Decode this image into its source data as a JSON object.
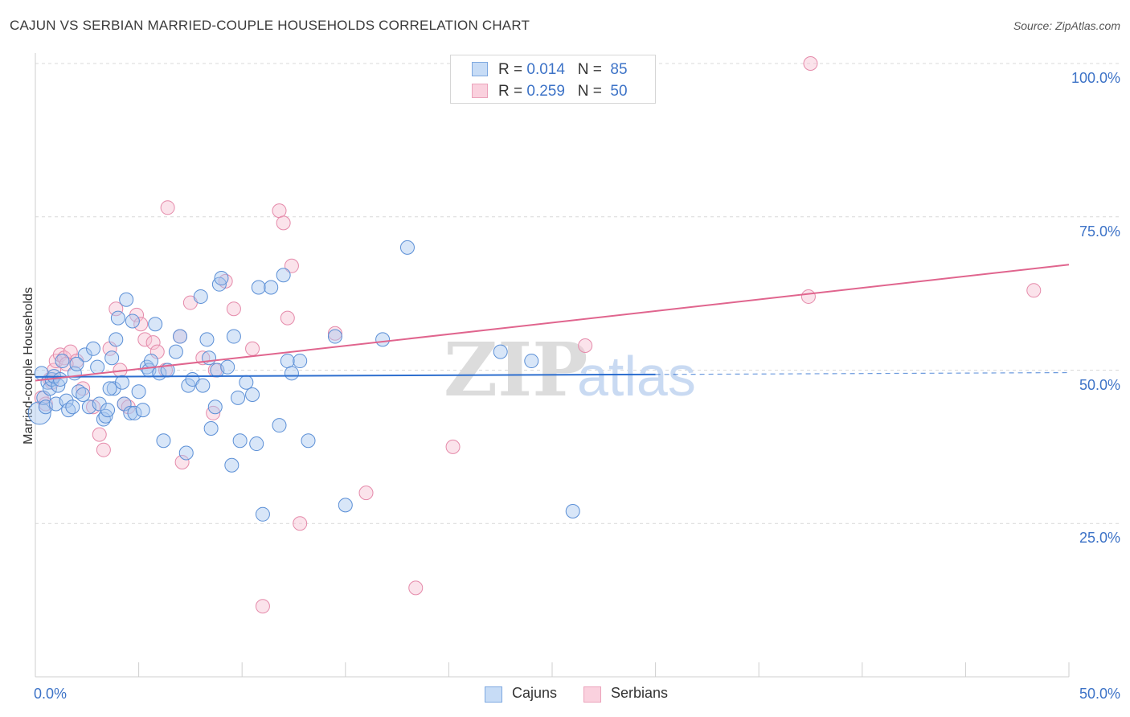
{
  "title": "CAJUN VS SERBIAN MARRIED-COUPLE HOUSEHOLDS CORRELATION CHART",
  "source": "Source: ZipAtlas.com",
  "watermark": {
    "part1": "ZIP",
    "part2": "atlas"
  },
  "colors": {
    "cajuns_fill": "#a8c8f0",
    "cajuns_stroke": "#5b8fd6",
    "cajuns_line": "#2e6fcf",
    "serbians_fill": "#f7c0d2",
    "serbians_stroke": "#e58aaa",
    "serbians_line": "#e0658e",
    "axis_text": "#3d73c7",
    "grid": "#d9d9d9"
  },
  "legend": {
    "rows": [
      {
        "r_label": "R = ",
        "r_value": "0.014",
        "n_label": "N = ",
        "n_value": "85"
      },
      {
        "r_label": "R = ",
        "r_value": "0.259",
        "n_label": "N = ",
        "n_value": "50"
      }
    ]
  },
  "bottom_legend": {
    "cajuns": "Cajuns",
    "serbians": "Serbians"
  },
  "chart_data": {
    "type": "scatter",
    "title": "CAJUN VS SERBIAN MARRIED-COUPLE HOUSEHOLDS CORRELATION CHART",
    "xlabel": "",
    "ylabel": "Married-couple Households",
    "xlim": [
      0,
      50
    ],
    "ylim": [
      0,
      100
    ],
    "x_tick_labels": [
      "0.0%",
      "50.0%"
    ],
    "y_ticks": [
      25,
      50,
      75,
      100
    ],
    "y_tick_labels": [
      "25.0%",
      "50.0%",
      "75.0%",
      "100.0%"
    ],
    "grid": true,
    "series": [
      {
        "name": "Cajuns",
        "r": 0.014,
        "n": 85,
        "trend": {
          "x0": 0,
          "y0": 48.9,
          "x1": 30,
          "y1": 49.3,
          "x_dash_end": 50,
          "y_dash_end": 49.6
        },
        "points": [
          [
            0.2,
            43.0
          ],
          [
            0.3,
            49.5
          ],
          [
            0.4,
            45.5
          ],
          [
            0.5,
            44.0
          ],
          [
            0.6,
            48.0
          ],
          [
            0.7,
            47.0
          ],
          [
            0.8,
            48.5
          ],
          [
            1.0,
            44.5
          ],
          [
            1.1,
            47.5
          ],
          [
            1.3,
            51.5
          ],
          [
            1.5,
            45.0
          ],
          [
            1.6,
            43.5
          ],
          [
            1.8,
            44.0
          ],
          [
            1.9,
            49.5
          ],
          [
            2.1,
            46.5
          ],
          [
            2.3,
            46.0
          ],
          [
            2.4,
            52.5
          ],
          [
            2.6,
            44.0
          ],
          [
            2.8,
            53.5
          ],
          [
            3.0,
            50.5
          ],
          [
            3.1,
            44.5
          ],
          [
            3.3,
            42.0
          ],
          [
            3.4,
            42.5
          ],
          [
            3.5,
            43.5
          ],
          [
            3.7,
            52.0
          ],
          [
            3.8,
            47.0
          ],
          [
            3.9,
            55.0
          ],
          [
            4.0,
            58.5
          ],
          [
            4.2,
            48.0
          ],
          [
            4.3,
            44.5
          ],
          [
            4.4,
            61.5
          ],
          [
            4.6,
            43.0
          ],
          [
            4.7,
            58.0
          ],
          [
            4.8,
            43.0
          ],
          [
            5.0,
            46.5
          ],
          [
            5.2,
            43.5
          ],
          [
            5.4,
            50.5
          ],
          [
            5.5,
            50.0
          ],
          [
            5.6,
            51.5
          ],
          [
            5.8,
            57.5
          ],
          [
            6.0,
            49.5
          ],
          [
            6.2,
            38.5
          ],
          [
            6.4,
            50.0
          ],
          [
            6.8,
            53.0
          ],
          [
            7.0,
            55.5
          ],
          [
            7.3,
            36.5
          ],
          [
            7.4,
            47.5
          ],
          [
            7.6,
            48.5
          ],
          [
            8.0,
            62.0
          ],
          [
            8.1,
            47.5
          ],
          [
            8.3,
            55.0
          ],
          [
            8.4,
            52.0
          ],
          [
            8.5,
            40.5
          ],
          [
            8.7,
            44.0
          ],
          [
            8.8,
            50.0
          ],
          [
            8.9,
            64.0
          ],
          [
            9.0,
            65.0
          ],
          [
            9.3,
            50.5
          ],
          [
            9.5,
            34.5
          ],
          [
            9.6,
            55.5
          ],
          [
            9.8,
            45.5
          ],
          [
            9.9,
            38.5
          ],
          [
            10.2,
            48.0
          ],
          [
            10.5,
            46.0
          ],
          [
            10.7,
            38.0
          ],
          [
            10.8,
            63.5
          ],
          [
            11.0,
            26.5
          ],
          [
            11.4,
            63.5
          ],
          [
            11.8,
            41.0
          ],
          [
            12.0,
            65.5
          ],
          [
            12.2,
            51.5
          ],
          [
            12.4,
            49.5
          ],
          [
            12.8,
            51.5
          ],
          [
            13.2,
            38.5
          ],
          [
            14.5,
            55.5
          ],
          [
            15.0,
            28.0
          ],
          [
            16.8,
            55.0
          ],
          [
            18.0,
            70.0
          ],
          [
            22.5,
            53.0
          ],
          [
            24.0,
            51.5
          ],
          [
            26.0,
            27.0
          ],
          [
            0.9,
            49.0
          ],
          [
            2.0,
            51.0
          ],
          [
            1.2,
            48.5
          ],
          [
            3.6,
            47.0
          ]
        ]
      },
      {
        "name": "Serbians",
        "r": 0.259,
        "n": 50,
        "trend": {
          "x0": 0,
          "y0": 48.3,
          "x1": 50,
          "y1": 67.2
        },
        "points": [
          [
            0.3,
            45.5
          ],
          [
            0.5,
            44.5
          ],
          [
            0.7,
            48.5
          ],
          [
            0.9,
            50.0
          ],
          [
            1.0,
            51.5
          ],
          [
            1.2,
            52.5
          ],
          [
            1.4,
            52.0
          ],
          [
            1.7,
            53.0
          ],
          [
            2.0,
            51.5
          ],
          [
            2.3,
            47.0
          ],
          [
            2.8,
            44.0
          ],
          [
            3.1,
            39.5
          ],
          [
            3.3,
            37.0
          ],
          [
            3.6,
            53.5
          ],
          [
            3.9,
            60.0
          ],
          [
            4.1,
            50.0
          ],
          [
            4.3,
            44.5
          ],
          [
            4.5,
            44.0
          ],
          [
            4.9,
            59.0
          ],
          [
            5.1,
            57.5
          ],
          [
            5.3,
            55.0
          ],
          [
            5.7,
            54.5
          ],
          [
            5.9,
            53.0
          ],
          [
            6.3,
            50.0
          ],
          [
            6.4,
            76.5
          ],
          [
            7.0,
            55.5
          ],
          [
            7.1,
            35.0
          ],
          [
            7.5,
            61.0
          ],
          [
            8.1,
            52.0
          ],
          [
            8.6,
            43.0
          ],
          [
            8.7,
            50.0
          ],
          [
            9.2,
            64.5
          ],
          [
            9.6,
            60.0
          ],
          [
            10.5,
            53.5
          ],
          [
            11.0,
            11.5
          ],
          [
            11.8,
            76.0
          ],
          [
            12.0,
            74.0
          ],
          [
            12.2,
            58.5
          ],
          [
            12.4,
            67.0
          ],
          [
            12.8,
            25.0
          ],
          [
            14.5,
            56.0
          ],
          [
            16.0,
            30.0
          ],
          [
            18.4,
            14.5
          ],
          [
            20.2,
            37.5
          ],
          [
            26.6,
            54.0
          ],
          [
            37.5,
            100.0
          ],
          [
            37.4,
            62.0
          ],
          [
            48.3,
            63.0
          ],
          [
            1.5,
            51.0
          ],
          [
            0.8,
            48.0
          ]
        ]
      }
    ]
  }
}
